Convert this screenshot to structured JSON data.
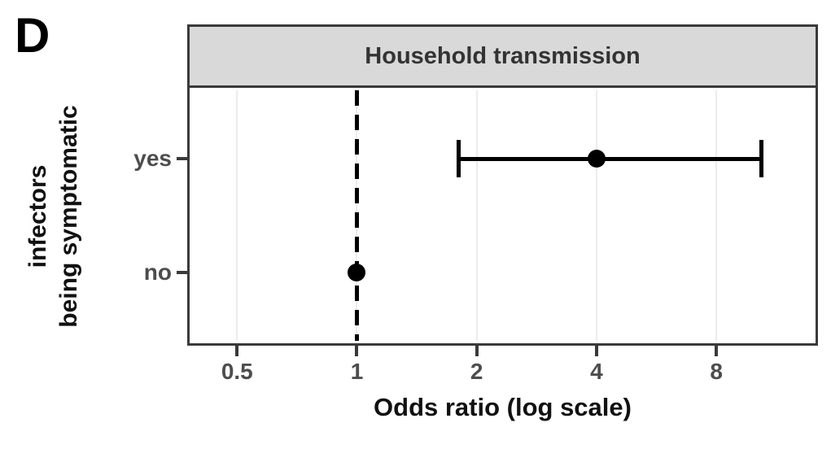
{
  "panel_label": "D",
  "chart_data": {
    "type": "scatter",
    "subtype": "forest-plot",
    "title": "Household transmission",
    "xlabel": "Odds ratio (log scale)",
    "ylabel": "infectors\nbeing symptomatic",
    "ylabel_lines": [
      "infectors",
      "being symptomatic"
    ],
    "x_scale": "log2",
    "xlim": [
      0.38,
      14.2
    ],
    "x_ticks": [
      0.5,
      1,
      2,
      4,
      8
    ],
    "x_tick_labels": [
      "0.5",
      "1",
      "2",
      "4",
      "8"
    ],
    "reference_line_x": 1,
    "categories": [
      "yes",
      "no"
    ],
    "rows": [
      {
        "label": "yes",
        "odds_ratio": 4.0,
        "ci_low": 1.8,
        "ci_high": 10.4
      },
      {
        "label": "no",
        "odds_ratio": 1.0,
        "ci_low": null,
        "ci_high": null
      }
    ],
    "grid": true,
    "legend": "none"
  },
  "colors": {
    "strip_fill": "#d9d9d9",
    "panel_border": "#3a3a3a",
    "gridline": "#ececec",
    "tick_text": "#4d4d4d",
    "strip_text": "#333333",
    "data": "#000000",
    "background": "#ffffff"
  }
}
